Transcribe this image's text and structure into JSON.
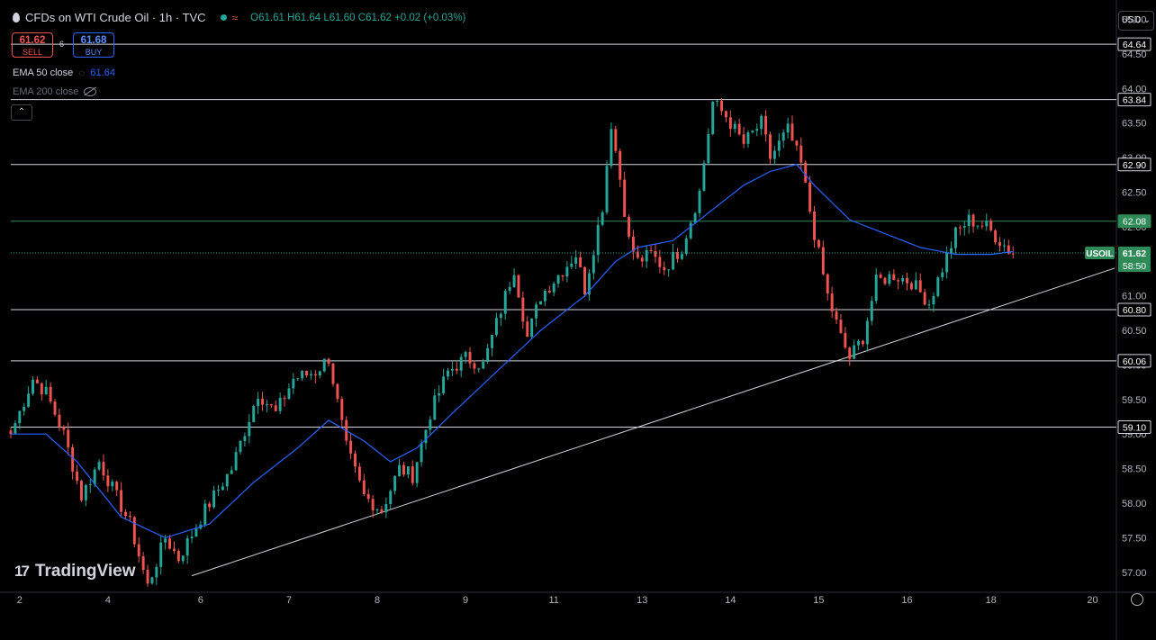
{
  "header": {
    "title": "CFDs on WTI Crude Oil · 1h · TVC",
    "open": "O61.61",
    "high": "H61.64",
    "low": "L61.60",
    "close": "C61.62",
    "change": "+0.02 (+0.03%)"
  },
  "trade": {
    "sell_price": "61.62",
    "sell_label": "SELL",
    "spread": "6",
    "buy_price": "61.68",
    "buy_label": "BUY"
  },
  "indicators": {
    "ema50_label": "EMA 50 close",
    "ema50_value": "61.64",
    "ema200_label": "EMA 200 close"
  },
  "currency": "USD",
  "logo": "TradingView",
  "colors": {
    "up": "#26a69a",
    "down": "#ef5350",
    "ema": "#2962ff",
    "up_badge": "#2e8b57",
    "background": "#000000"
  },
  "chart_data": {
    "type": "candlestick",
    "symbol_tag": "USOIL",
    "last_price": "61.62",
    "countdown": "58:50",
    "y_range": [
      56.75,
      65.15
    ],
    "y_ticks": [
      "65.00",
      "64.50",
      "64.00",
      "63.50",
      "63.00",
      "62.50",
      "62.00",
      "61.50",
      "61.00",
      "60.50",
      "60.00",
      "59.50",
      "59.00",
      "58.50",
      "58.00",
      "57.50",
      "57.00"
    ],
    "x_ticks": [
      {
        "label": "2",
        "i": 2
      },
      {
        "label": "4",
        "i": 22
      },
      {
        "label": "6",
        "i": 43
      },
      {
        "label": "7",
        "i": 63
      },
      {
        "label": "8",
        "i": 83
      },
      {
        "label": "9",
        "i": 103
      },
      {
        "label": "11",
        "i": 123
      },
      {
        "label": "13",
        "i": 143
      },
      {
        "label": "14",
        "i": 163
      },
      {
        "label": "15",
        "i": 183
      },
      {
        "label": "16",
        "i": 203
      },
      {
        "label": "18",
        "i": 222
      },
      {
        "label": "20",
        "i": 245
      }
    ],
    "index_range": [
      0,
      250
    ],
    "levels": [
      {
        "value": 64.64,
        "label": "64.64",
        "badge": false
      },
      {
        "value": 63.84,
        "label": "63.84",
        "badge": false
      },
      {
        "value": 62.9,
        "label": "62.90",
        "badge": false
      },
      {
        "value": 62.08,
        "label": "62.08",
        "badge": true
      },
      {
        "value": 60.8,
        "label": "60.80",
        "badge": false
      },
      {
        "value": 60.06,
        "label": "60.06",
        "badge": false
      },
      {
        "value": 59.1,
        "label": "59.10",
        "badge": false
      }
    ],
    "trendline": [
      [
        41,
        56.95
      ],
      [
        250,
        61.4
      ]
    ],
    "anchors": [
      [
        0,
        59.0
      ],
      [
        5,
        59.8
      ],
      [
        8,
        59.6
      ],
      [
        12,
        59.0
      ],
      [
        16,
        58.1
      ],
      [
        20,
        58.6
      ],
      [
        27,
        57.7
      ],
      [
        31,
        56.8
      ],
      [
        35,
        57.5
      ],
      [
        38,
        57.2
      ],
      [
        44,
        57.9
      ],
      [
        50,
        58.5
      ],
      [
        56,
        59.6
      ],
      [
        60,
        59.3
      ],
      [
        64,
        59.8
      ],
      [
        69,
        59.9
      ],
      [
        72,
        60.1
      ],
      [
        76,
        58.8
      ],
      [
        80,
        58.1
      ],
      [
        84,
        57.9
      ],
      [
        88,
        58.5
      ],
      [
        91,
        58.4
      ],
      [
        95,
        59.3
      ],
      [
        99,
        59.9
      ],
      [
        103,
        60.1
      ],
      [
        107,
        60.0
      ],
      [
        111,
        60.8
      ],
      [
        114,
        61.4
      ],
      [
        117,
        60.4
      ],
      [
        120,
        61.0
      ],
      [
        124,
        61.3
      ],
      [
        128,
        61.6
      ],
      [
        130,
        61.1
      ],
      [
        134,
        62.3
      ],
      [
        136,
        63.5
      ],
      [
        138,
        62.7
      ],
      [
        140,
        61.8
      ],
      [
        142,
        61.5
      ],
      [
        145,
        61.6
      ],
      [
        148,
        61.4
      ],
      [
        152,
        61.7
      ],
      [
        156,
        62.5
      ],
      [
        159,
        63.8
      ],
      [
        162,
        63.6
      ],
      [
        166,
        63.2
      ],
      [
        170,
        63.5
      ],
      [
        172,
        63.0
      ],
      [
        176,
        63.4
      ],
      [
        179,
        62.9
      ],
      [
        182,
        61.9
      ],
      [
        185,
        61.0
      ],
      [
        188,
        60.4
      ],
      [
        190,
        60.1
      ],
      [
        193,
        60.4
      ],
      [
        196,
        61.2
      ],
      [
        200,
        61.3
      ],
      [
        204,
        61.2
      ],
      [
        208,
        60.9
      ],
      [
        211,
        61.4
      ],
      [
        214,
        61.9
      ],
      [
        217,
        62.1
      ],
      [
        221,
        62.0
      ],
      [
        224,
        61.8
      ],
      [
        227,
        61.6
      ]
    ],
    "ema50_anchors": [
      [
        0,
        59.0
      ],
      [
        8,
        59.0
      ],
      [
        15,
        58.6
      ],
      [
        25,
        57.8
      ],
      [
        35,
        57.5
      ],
      [
        45,
        57.7
      ],
      [
        55,
        58.3
      ],
      [
        65,
        58.8
      ],
      [
        72,
        59.2
      ],
      [
        80,
        58.9
      ],
      [
        86,
        58.6
      ],
      [
        92,
        58.8
      ],
      [
        100,
        59.3
      ],
      [
        110,
        59.9
      ],
      [
        120,
        60.5
      ],
      [
        130,
        61.0
      ],
      [
        137,
        61.5
      ],
      [
        142,
        61.7
      ],
      [
        150,
        61.8
      ],
      [
        158,
        62.2
      ],
      [
        166,
        62.6
      ],
      [
        172,
        62.8
      ],
      [
        178,
        62.9
      ],
      [
        182,
        62.6
      ],
      [
        190,
        62.1
      ],
      [
        198,
        61.9
      ],
      [
        206,
        61.7
      ],
      [
        214,
        61.6
      ],
      [
        222,
        61.6
      ],
      [
        227,
        61.64
      ]
    ]
  }
}
